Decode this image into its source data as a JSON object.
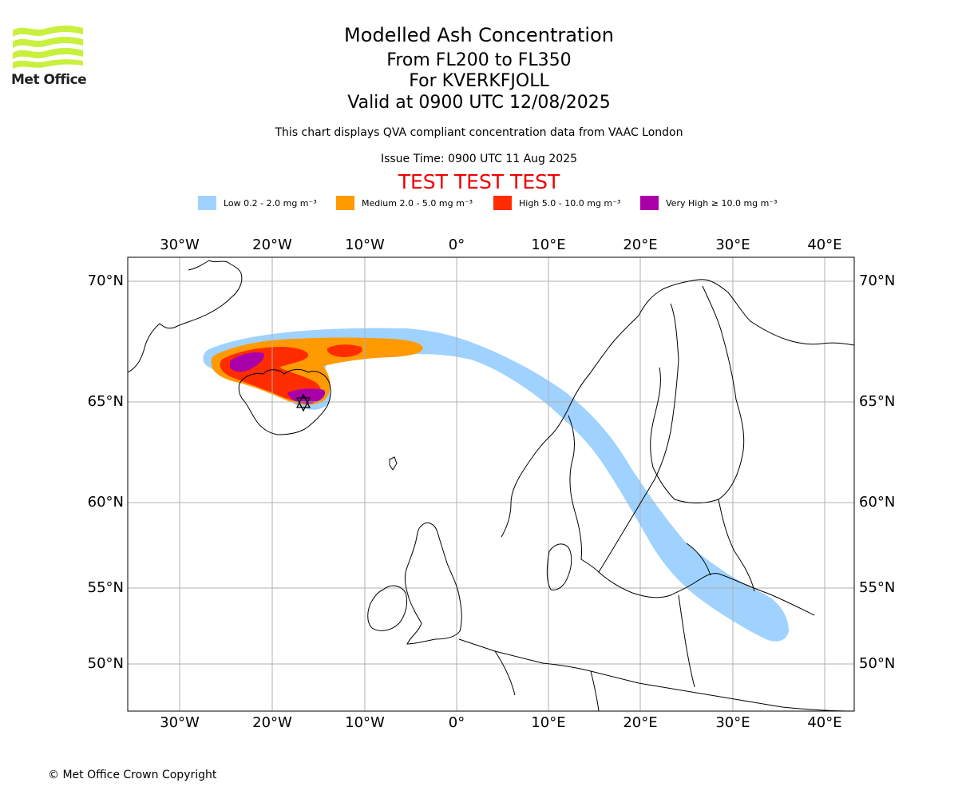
{
  "branding": {
    "logo_text": "Met Office"
  },
  "header": {
    "title": "Modelled Ash Concentration",
    "levels": "From FL200 to FL350",
    "volcano": "For KVERKFJOLL",
    "valid": "Valid at 0900 UTC 12/08/2025",
    "note": "This chart displays QVA compliant concentration data from VAAC London",
    "issue_time": "Issue Time: 0900 UTC 11 Aug 2025",
    "test_banner": "TEST TEST TEST"
  },
  "legend": [
    {
      "label": "Low 0.2 - 2.0 mg m⁻³",
      "color": "#a0d2ff"
    },
    {
      "label": "Medium 2.0 - 5.0 mg m⁻³",
      "color": "#ff9a00"
    },
    {
      "label": "High 5.0 - 10.0 mg m⁻³",
      "color": "#ff2c00"
    },
    {
      "label": "Very High ≥ 10.0 mg m⁻³",
      "color": "#aa00aa"
    }
  ],
  "map": {
    "longitude_labels": [
      "30°W",
      "20°W",
      "10°W",
      "0°",
      "10°E",
      "20°E",
      "30°E",
      "40°E"
    ],
    "latitude_labels": [
      "70°N",
      "65°N",
      "60°N",
      "55°N",
      "50°N"
    ],
    "volcano_marker": "star-marker"
  },
  "footer": {
    "copyright": "© Met Office Crown Copyright"
  }
}
